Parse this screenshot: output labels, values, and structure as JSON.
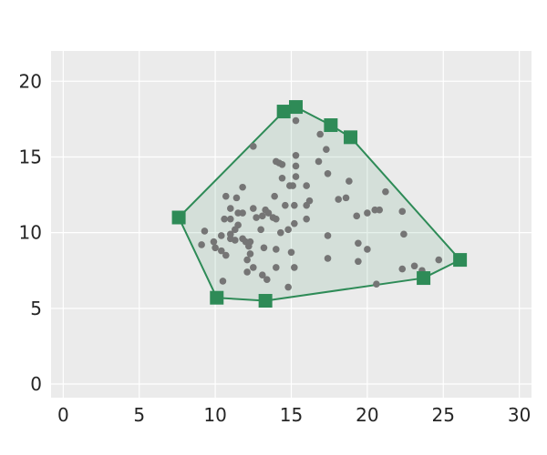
{
  "chart_data": {
    "type": "scatter",
    "title": "",
    "xlabel": "",
    "ylabel": "",
    "xlim": [
      -0.8,
      30.8
    ],
    "ylim": [
      -0.9,
      22
    ],
    "x_ticks": [
      0,
      5,
      10,
      15,
      20,
      25,
      30
    ],
    "y_ticks": [
      0,
      5,
      10,
      15,
      20
    ],
    "grid": true,
    "colors": {
      "background": "#ebebeb",
      "grid": "#ffffff",
      "points": "#757575",
      "hull_edge": "#2e8b57",
      "hull_fill": "#2e8b57",
      "hull_fill_opacity": 0.12
    },
    "series": [
      {
        "type": "scatter",
        "points": [
          [
            12.5,
            15.7
          ],
          [
            14.4,
            14.5
          ],
          [
            15.3,
            15.1
          ],
          [
            15.3,
            14.4
          ],
          [
            16.0,
            13.1
          ],
          [
            16.8,
            14.7
          ],
          [
            17.3,
            15.5
          ],
          [
            16.9,
            16.5
          ],
          [
            15.3,
            17.4
          ],
          [
            14.2,
            14.6
          ],
          [
            14.0,
            14.7
          ],
          [
            14.4,
            13.6
          ],
          [
            14.9,
            13.1
          ],
          [
            15.1,
            13.1
          ],
          [
            15.3,
            13.7
          ],
          [
            17.4,
            13.9
          ],
          [
            18.8,
            13.4
          ],
          [
            18.1,
            12.2
          ],
          [
            18.6,
            12.3
          ],
          [
            21.2,
            12.7
          ],
          [
            22.3,
            11.4
          ],
          [
            20.5,
            11.5
          ],
          [
            20.8,
            11.5
          ],
          [
            20.0,
            11.3
          ],
          [
            19.3,
            11.1
          ],
          [
            16.2,
            12.1
          ],
          [
            16.0,
            11.8
          ],
          [
            15.2,
            11.8
          ],
          [
            14.6,
            11.8
          ],
          [
            13.9,
            12.4
          ],
          [
            10.7,
            12.4
          ],
          [
            11.4,
            12.3
          ],
          [
            11.8,
            13.0
          ],
          [
            11.0,
            11.6
          ],
          [
            11.5,
            11.3
          ],
          [
            11.8,
            11.3
          ],
          [
            12.5,
            11.6
          ],
          [
            13.3,
            11.5
          ],
          [
            13.5,
            11.3
          ],
          [
            13.1,
            11.1
          ],
          [
            12.7,
            11.0
          ],
          [
            13.8,
            11.0
          ],
          [
            14.0,
            10.9
          ],
          [
            15.2,
            10.6
          ],
          [
            16.0,
            10.9
          ],
          [
            10.6,
            10.9
          ],
          [
            11.0,
            10.9
          ],
          [
            11.5,
            10.5
          ],
          [
            11.3,
            10.2
          ],
          [
            11.0,
            9.9
          ],
          [
            9.3,
            10.1
          ],
          [
            9.9,
            9.4
          ],
          [
            10.4,
            9.8
          ],
          [
            11.0,
            9.6
          ],
          [
            11.3,
            9.5
          ],
          [
            11.8,
            9.6
          ],
          [
            12.0,
            9.4
          ],
          [
            12.3,
            9.4
          ],
          [
            13.0,
            10.2
          ],
          [
            14.3,
            10.0
          ],
          [
            14.8,
            10.2
          ],
          [
            17.4,
            9.8
          ],
          [
            19.4,
            9.3
          ],
          [
            20.0,
            8.9
          ],
          [
            22.4,
            9.9
          ],
          [
            9.1,
            9.2
          ],
          [
            10.0,
            9.0
          ],
          [
            10.4,
            8.8
          ],
          [
            10.7,
            8.5
          ],
          [
            12.2,
            9.1
          ],
          [
            12.3,
            8.6
          ],
          [
            13.2,
            9.0
          ],
          [
            14.0,
            8.9
          ],
          [
            15.0,
            8.7
          ],
          [
            17.4,
            8.3
          ],
          [
            19.4,
            8.1
          ],
          [
            12.1,
            8.2
          ],
          [
            12.5,
            7.7
          ],
          [
            12.1,
            7.4
          ],
          [
            13.1,
            7.2
          ],
          [
            13.4,
            6.9
          ],
          [
            14.0,
            7.7
          ],
          [
            15.2,
            7.7
          ],
          [
            10.5,
            6.8
          ],
          [
            14.8,
            6.4
          ],
          [
            20.6,
            6.6
          ],
          [
            22.3,
            7.6
          ],
          [
            23.1,
            7.8
          ],
          [
            23.6,
            7.5
          ],
          [
            24.7,
            8.2
          ]
        ]
      },
      {
        "type": "hull",
        "vertices": [
          [
            7.6,
            11.0
          ],
          [
            10.1,
            5.7
          ],
          [
            13.3,
            5.5
          ],
          [
            23.7,
            7.0
          ],
          [
            26.1,
            8.2
          ],
          [
            18.9,
            16.3
          ],
          [
            17.6,
            17.1
          ],
          [
            15.3,
            18.3
          ],
          [
            14.5,
            18.0
          ]
        ]
      }
    ]
  }
}
